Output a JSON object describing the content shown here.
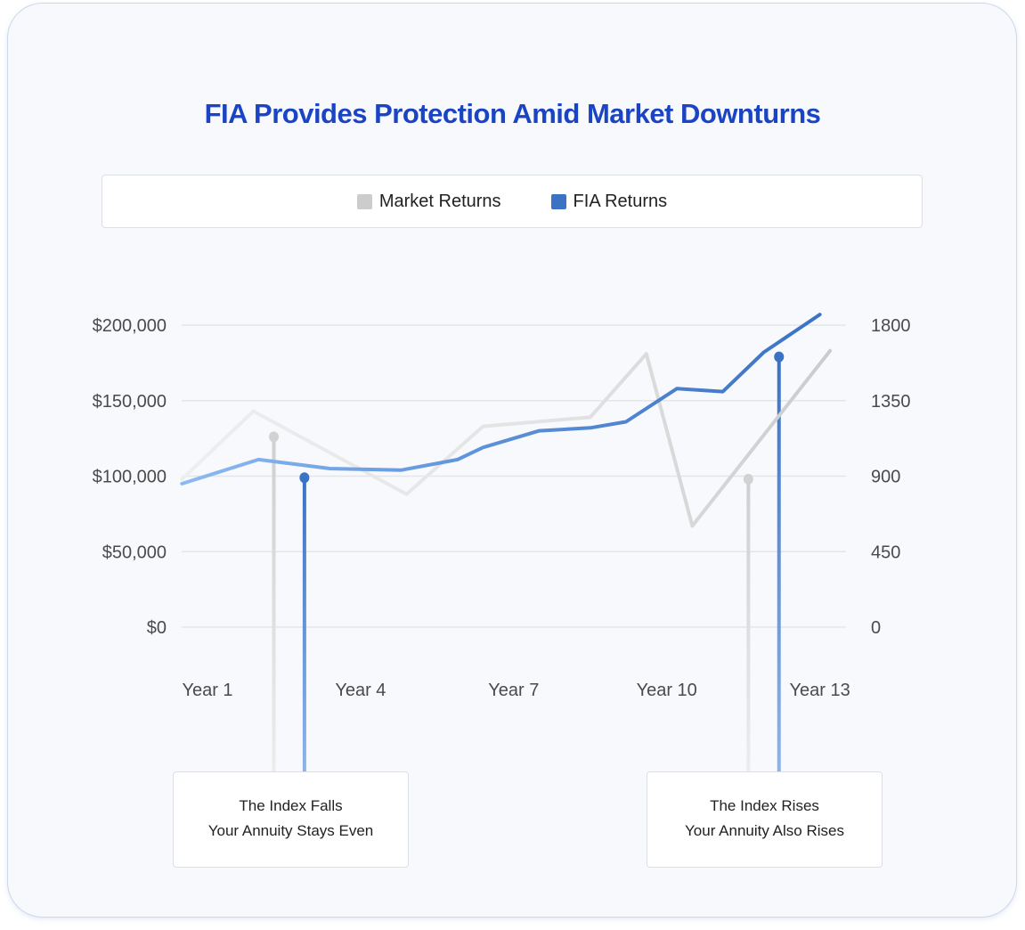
{
  "colors": {
    "title": "#1a44c4",
    "market": "#cccccc",
    "fia": "#3a72c4",
    "market_light": "#eeeeee",
    "fia_light": "#8cbaf0"
  },
  "chart_data": {
    "type": "line",
    "title": "FIA Provides Protection Amid Market Downturns",
    "legend_position": "top",
    "grid": true,
    "x_ticks": [
      "Year 1",
      "Year 4",
      "Year 7",
      "Year 10",
      "Year 13"
    ],
    "x_tick_values": [
      1,
      4,
      7,
      10,
      13
    ],
    "xlim": [
      0.5,
      13.2
    ],
    "y_left": {
      "ticks": [
        "$200,000",
        "$150,000",
        "$100,000",
        "$50,000",
        "$0"
      ],
      "tick_values": [
        200000,
        150000,
        100000,
        50000,
        0
      ],
      "ylim": [
        0,
        200000
      ]
    },
    "y_right": {
      "ticks": [
        "1800",
        "1350",
        "900",
        "450",
        "0"
      ]
    },
    "series": [
      {
        "name": "Market Returns",
        "color": "#cccccc",
        "points": [
          [
            0.5,
            98000
          ],
          [
            1.9,
            143000
          ],
          [
            4.9,
            88000
          ],
          [
            6.4,
            133000
          ],
          [
            8.5,
            139000
          ],
          [
            9.6,
            181000
          ],
          [
            10.5,
            67000
          ],
          [
            13.2,
            183000
          ]
        ]
      },
      {
        "name": "FIA Returns",
        "color": "#3a72c4",
        "points": [
          [
            0.5,
            95000
          ],
          [
            2.0,
            111000
          ],
          [
            3.4,
            105000
          ],
          [
            4.8,
            104000
          ],
          [
            5.9,
            111000
          ],
          [
            6.4,
            119000
          ],
          [
            7.5,
            130000
          ],
          [
            8.5,
            132000
          ],
          [
            9.2,
            136000
          ],
          [
            10.2,
            158000
          ],
          [
            11.1,
            156000
          ],
          [
            11.9,
            182000
          ],
          [
            13.0,
            207000
          ]
        ]
      }
    ],
    "annotations": [
      {
        "line1": "The Index Falls",
        "line2": "Your Annuity Stays Even",
        "market_marker": [
          2.3,
          126000
        ],
        "fia_marker": [
          2.9,
          99000
        ]
      },
      {
        "line1": "The Index Rises",
        "line2": "Your Annuity Also Rises",
        "market_marker": [
          11.6,
          98000
        ],
        "fia_marker": [
          12.2,
          179000
        ]
      }
    ]
  }
}
